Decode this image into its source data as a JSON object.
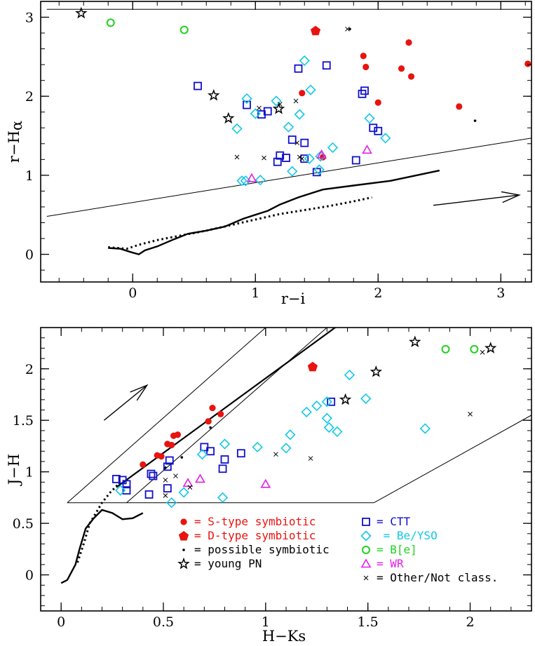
{
  "chart_data": [
    {
      "type": "scatter",
      "xlabel": "r−i",
      "ylabel_base": "r−H",
      "ylabel_sub": "α",
      "xlim": [
        -0.75,
        3.25
      ],
      "ylim": [
        -0.35,
        3.2
      ],
      "xticks": [
        {
          "v": 0,
          "t": "0"
        },
        {
          "v": 1,
          "t": "1"
        },
        {
          "v": 2,
          "t": "2"
        },
        {
          "v": 3,
          "t": "3"
        }
      ],
      "yticks": [
        {
          "v": 0,
          "t": "0"
        },
        {
          "v": 1,
          "t": "1"
        },
        {
          "v": 2,
          "t": "2"
        },
        {
          "v": 3,
          "t": "3"
        }
      ],
      "region": [
        [
          -0.7,
          3.1
        ],
        [
          3.25,
          3.1
        ],
        [
          3.25,
          1.47
        ],
        [
          -0.7,
          0.48
        ]
      ],
      "ms_solid": [
        [
          -0.2,
          0.08
        ],
        [
          -0.1,
          0.07
        ],
        [
          -0.02,
          0.03
        ],
        [
          0.05,
          0.0
        ],
        [
          0.1,
          0.05
        ],
        [
          0.2,
          0.1
        ],
        [
          0.32,
          0.18
        ],
        [
          0.45,
          0.26
        ],
        [
          0.6,
          0.3
        ],
        [
          0.75,
          0.35
        ],
        [
          0.9,
          0.45
        ],
        [
          1.0,
          0.5
        ],
        [
          1.1,
          0.55
        ],
        [
          1.2,
          0.63
        ],
        [
          1.35,
          0.72
        ],
        [
          1.55,
          0.82
        ],
        [
          1.8,
          0.87
        ],
        [
          2.1,
          0.93
        ],
        [
          2.5,
          1.06
        ]
      ],
      "ms_dotted": [
        [
          -0.2,
          0.09
        ],
        [
          -0.05,
          0.07
        ],
        [
          0.05,
          0.12
        ],
        [
          0.2,
          0.18
        ],
        [
          0.4,
          0.24
        ],
        [
          0.6,
          0.3
        ],
        [
          0.8,
          0.37
        ],
        [
          1.0,
          0.44
        ],
        [
          1.2,
          0.51
        ],
        [
          1.4,
          0.56
        ],
        [
          1.6,
          0.61
        ],
        [
          1.8,
          0.67
        ],
        [
          1.95,
          0.72
        ]
      ],
      "arrow": [
        [
          2.45,
          0.62
        ],
        [
          3.15,
          0.75
        ]
      ],
      "series": [
        {
          "symbol": "s_symbiotic",
          "points": [
            [
              1.38,
              2.04
            ],
            [
              1.88,
              2.51
            ],
            [
              1.9,
              2.37
            ],
            [
              2.25,
              2.68
            ],
            [
              2.27,
              2.25
            ],
            [
              2.19,
              2.35
            ],
            [
              2.0,
              1.92
            ],
            [
              2.66,
              1.87
            ],
            [
              3.22,
              2.41
            ],
            [
              1.55,
              1.23
            ]
          ]
        },
        {
          "symbol": "d_symbiotic",
          "points": [
            [
              1.49,
              2.83
            ]
          ]
        },
        {
          "symbol": "possible_symbiotic",
          "points": [
            [
              1.77,
              2.85
            ],
            [
              2.79,
              1.69
            ]
          ]
        },
        {
          "symbol": "young_pn",
          "points": [
            [
              -0.42,
              3.05
            ],
            [
              0.66,
              2.01
            ],
            [
              0.78,
              1.72
            ],
            [
              1.19,
              1.84
            ]
          ]
        },
        {
          "symbol": "ctt",
          "points": [
            [
              0.53,
              2.13
            ],
            [
              0.93,
              1.89
            ],
            [
              1.05,
              1.77
            ],
            [
              1.1,
              1.81
            ],
            [
              1.2,
              1.25
            ],
            [
              1.18,
              1.17
            ],
            [
              1.3,
              1.45
            ],
            [
              1.4,
              1.41
            ],
            [
              1.4,
              1.21
            ],
            [
              1.35,
              2.35
            ],
            [
              1.58,
              2.39
            ],
            [
              1.5,
              1.04
            ],
            [
              1.82,
              1.19
            ],
            [
              1.87,
              2.03
            ],
            [
              1.89,
              2.07
            ],
            [
              1.96,
              1.6
            ],
            [
              2.0,
              1.56
            ],
            [
              1.25,
              1.22
            ]
          ]
        },
        {
          "symbol": "be_yso",
          "points": [
            [
              1.4,
              2.45
            ],
            [
              0.93,
              1.97
            ],
            [
              1.17,
              1.94
            ],
            [
              1.45,
              2.08
            ],
            [
              1.36,
              1.77
            ],
            [
              1.0,
              1.78
            ],
            [
              0.85,
              1.59
            ],
            [
              1.27,
              1.61
            ],
            [
              1.52,
              1.07
            ],
            [
              1.53,
              1.24
            ],
            [
              1.3,
              1.05
            ],
            [
              1.44,
              1.21
            ],
            [
              1.63,
              1.35
            ],
            [
              1.93,
              1.72
            ],
            [
              2.06,
              1.47
            ],
            [
              0.89,
              0.93
            ],
            [
              0.92,
              0.93
            ],
            [
              1.04,
              0.94
            ]
          ]
        },
        {
          "symbol": "be",
          "points": [
            [
              -0.18,
              2.93
            ],
            [
              0.42,
              2.84
            ]
          ]
        },
        {
          "symbol": "wr",
          "points": [
            [
              1.54,
              1.26
            ],
            [
              1.91,
              1.32
            ],
            [
              0.97,
              0.96
            ]
          ]
        },
        {
          "symbol": "other",
          "points": [
            [
              1.75,
              2.85
            ],
            [
              1.03,
              1.85
            ],
            [
              1.33,
              1.94
            ],
            [
              1.2,
              1.9
            ],
            [
              0.85,
              1.23
            ],
            [
              1.07,
              1.22
            ],
            [
              1.34,
              1.41
            ],
            [
              1.38,
              1.21
            ],
            [
              1.36,
              1.23
            ]
          ]
        }
      ]
    },
    {
      "type": "scatter",
      "xlabel": "H−Ks",
      "ylabel": "J−H",
      "xlim": [
        -0.1,
        2.3
      ],
      "ylim": [
        -0.35,
        2.4
      ],
      "xticks": [
        {
          "v": 0,
          "t": "0"
        },
        {
          "v": 0.5,
          "t": "0.5"
        },
        {
          "v": 1,
          "t": "1"
        },
        {
          "v": 1.5,
          "t": "1.5"
        },
        {
          "v": 2,
          "t": "2"
        }
      ],
      "yticks": [
        {
          "v": 0,
          "t": "0"
        },
        {
          "v": 0.5,
          "t": "0.5"
        },
        {
          "v": 1,
          "t": "1"
        },
        {
          "v": 1.5,
          "t": "1.5"
        },
        {
          "v": 2,
          "t": "2"
        }
      ],
      "band_lines": [
        [
          [
            0.03,
            0.7
          ],
          [
            1.0,
            2.4
          ]
        ],
        [
          [
            0.32,
            0.7
          ],
          [
            1.3,
            2.4
          ]
        ],
        [
          [
            0.03,
            0.7
          ],
          [
            1.53,
            0.7
          ]
        ],
        [
          [
            1.53,
            0.7
          ],
          [
            2.3,
            1.55
          ]
        ]
      ],
      "band_thick": [
        [
          0.27,
          0.85
        ],
        [
          1.34,
          2.4
        ]
      ],
      "ms_solid": [
        [
          0.0,
          -0.08
        ],
        [
          0.03,
          -0.05
        ],
        [
          0.07,
          0.1
        ],
        [
          0.09,
          0.25
        ],
        [
          0.12,
          0.45
        ],
        [
          0.16,
          0.55
        ],
        [
          0.2,
          0.63
        ],
        [
          0.25,
          0.6
        ],
        [
          0.3,
          0.54
        ],
        [
          0.35,
          0.55
        ],
        [
          0.4,
          0.6
        ]
      ],
      "ms_dotted": [
        [
          0.08,
          0.12
        ],
        [
          0.11,
          0.3
        ],
        [
          0.14,
          0.5
        ],
        [
          0.17,
          0.6
        ],
        [
          0.2,
          0.7
        ],
        [
          0.24,
          0.8
        ],
        [
          0.28,
          0.88
        ],
        [
          0.31,
          0.9
        ]
      ],
      "arrow": [
        [
          0.21,
          1.5
        ],
        [
          0.42,
          1.84
        ]
      ],
      "series": [
        {
          "symbol": "s_symbiotic",
          "points": [
            [
              0.4,
              1.07
            ],
            [
              0.47,
              1.16
            ],
            [
              0.49,
              1.15
            ],
            [
              0.52,
              1.27
            ],
            [
              0.54,
              1.26
            ],
            [
              0.55,
              1.35
            ],
            [
              0.57,
              1.36
            ],
            [
              0.72,
              1.49
            ],
            [
              0.74,
              1.62
            ],
            [
              0.78,
              1.56
            ]
          ]
        },
        {
          "symbol": "d_symbiotic",
          "points": [
            [
              1.23,
              2.02
            ]
          ]
        },
        {
          "symbol": "possible_symbiotic",
          "points": [
            [
              0.73,
              1.43
            ],
            [
              0.59,
              1.14
            ],
            [
              0.51,
              1.04
            ]
          ]
        },
        {
          "symbol": "young_pn",
          "points": [
            [
              1.73,
              2.26
            ],
            [
              1.54,
              1.97
            ],
            [
              1.39,
              1.7
            ],
            [
              2.1,
              2.2
            ]
          ]
        },
        {
          "symbol": "ctt",
          "points": [
            [
              0.27,
              0.93
            ],
            [
              0.3,
              0.92
            ],
            [
              0.32,
              0.88
            ],
            [
              0.32,
              0.82
            ],
            [
              0.44,
              0.98
            ],
            [
              0.45,
              0.96
            ],
            [
              0.43,
              0.78
            ],
            [
              0.52,
              0.84
            ],
            [
              0.52,
              1.05
            ],
            [
              0.53,
              1.11
            ],
            [
              0.7,
              1.24
            ],
            [
              0.73,
              1.2
            ],
            [
              0.79,
              1.03
            ],
            [
              0.8,
              1.12
            ],
            [
              0.88,
              1.18
            ],
            [
              1.32,
              1.68
            ]
          ]
        },
        {
          "symbol": "be_yso",
          "points": [
            [
              0.29,
              0.82
            ],
            [
              0.54,
              0.7
            ],
            [
              0.6,
              0.8
            ],
            [
              0.69,
              1.17
            ],
            [
              0.8,
              1.27
            ],
            [
              0.79,
              0.75
            ],
            [
              0.96,
              1.24
            ],
            [
              1.1,
              1.23
            ],
            [
              1.12,
              1.36
            ],
            [
              1.2,
              1.58
            ],
            [
              1.25,
              1.64
            ],
            [
              1.3,
              1.52
            ],
            [
              1.31,
              1.43
            ],
            [
              1.35,
              1.39
            ],
            [
              1.3,
              1.68
            ],
            [
              1.41,
              1.94
            ],
            [
              1.49,
              1.71
            ],
            [
              1.78,
              1.42
            ]
          ]
        },
        {
          "symbol": "be",
          "points": [
            [
              1.88,
              2.19
            ],
            [
              2.02,
              2.19
            ]
          ]
        },
        {
          "symbol": "wr",
          "points": [
            [
              0.62,
              0.89
            ],
            [
              0.68,
              0.93
            ],
            [
              1.0,
              0.88
            ]
          ]
        },
        {
          "symbol": "other",
          "points": [
            [
              0.51,
              0.77
            ],
            [
              0.51,
              0.92
            ],
            [
              0.56,
              0.96
            ],
            [
              0.63,
              0.85
            ],
            [
              1.05,
              1.17
            ],
            [
              1.22,
              1.13
            ],
            [
              2.0,
              1.56
            ],
            [
              2.06,
              2.16
            ]
          ]
        }
      ]
    }
  ],
  "legend": {
    "left": [
      {
        "symbol": "s_symbiotic",
        "label": "= S-type symbiotic",
        "color": "#e8140f"
      },
      {
        "symbol": "d_symbiotic",
        "label": "= D-type symbiotic",
        "color": "#e8140f"
      },
      {
        "symbol": "possible_symbiotic",
        "label": "= possible symbiotic",
        "color": "#000000"
      },
      {
        "symbol": "young_pn",
        "label": "= young PN",
        "color": "#000000"
      }
    ],
    "right": [
      {
        "symbol": "ctt",
        "label": "= CTT",
        "color": "#1010c8"
      },
      {
        "symbol": "be_yso",
        "label": " = Be/YSO",
        "color": "#12c8e6"
      },
      {
        "symbol": "be",
        "label": "= B[e]",
        "color": "#1ed21e"
      },
      {
        "symbol": "wr",
        "label": "= WR",
        "color": "#e61ee6"
      },
      {
        "symbol": "other",
        "label": "= Other/Not class.",
        "color": "#000000"
      }
    ]
  },
  "colors": {
    "s_symbiotic": "#e8140f",
    "d_symbiotic": "#e8140f",
    "possible_symbiotic": "#000000",
    "young_pn": "#000000",
    "ctt": "#1010c8",
    "be_yso": "#12c8e6",
    "be": "#1ed21e",
    "wr": "#e61ee6",
    "other": "#000000"
  }
}
